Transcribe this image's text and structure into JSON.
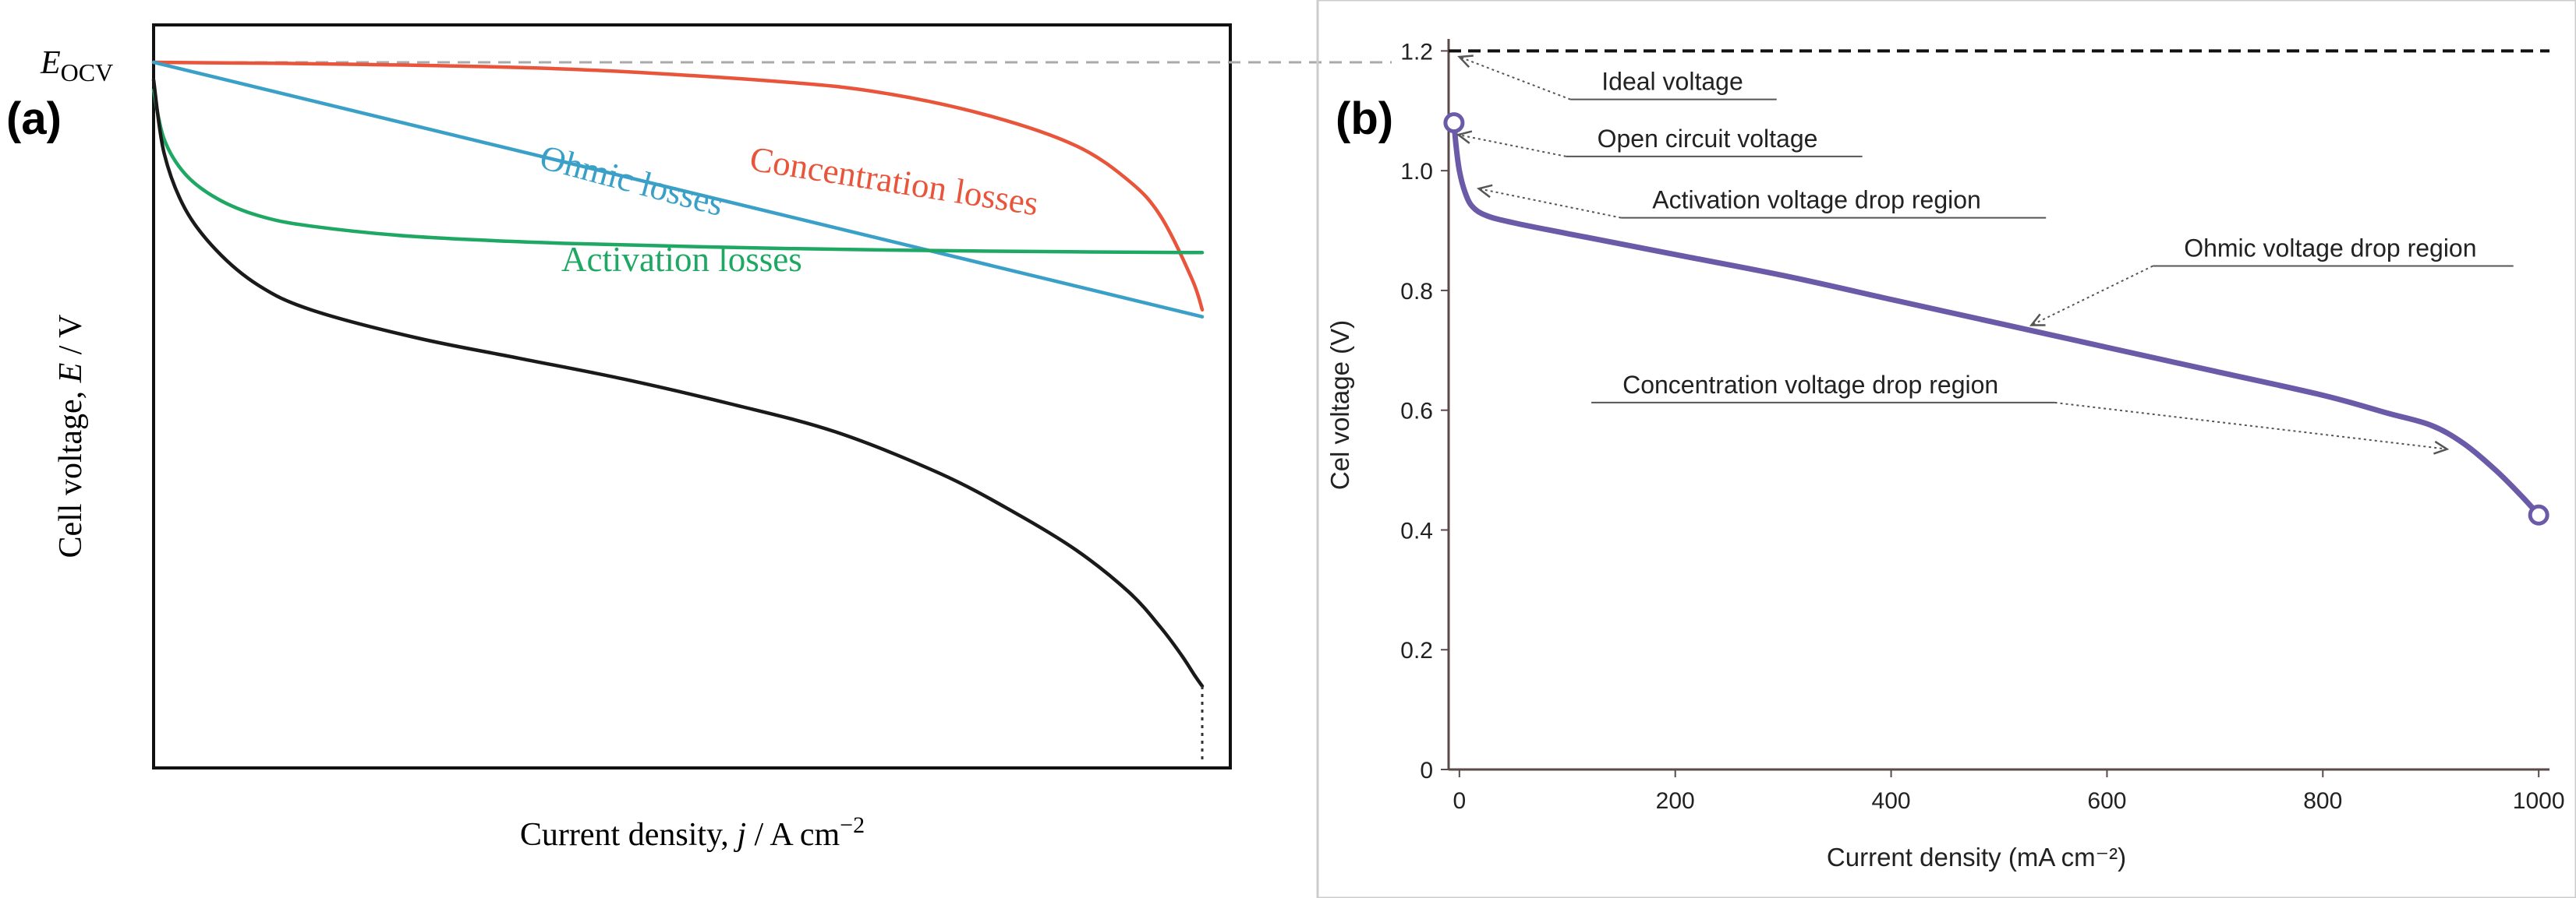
{
  "chart_data": [
    {
      "panel_label": "(a)",
      "type": "line",
      "xlabel_prefix": "Current density, ",
      "xlabel_var": "j",
      "xlabel_suffix": " / A cm",
      "xlabel_exp": "−2",
      "ylabel_prefix": "Cell voltage, ",
      "ylabel_var": "E",
      "ylabel_suffix": " / V",
      "ocv_main": "E",
      "ocv_sub": "OCV",
      "x_domain": [
        0,
        1
      ],
      "y_domain": [
        0,
        1.1
      ],
      "ocv": 1.0,
      "series": [
        {
          "name": "Concentration losses",
          "color": "#e8553a",
          "points": [
            [
              0,
              1.0
            ],
            [
              0.2,
              0.997
            ],
            [
              0.4,
              0.99
            ],
            [
              0.6,
              0.972
            ],
            [
              0.7,
              0.955
            ],
            [
              0.8,
              0.922
            ],
            [
              0.88,
              0.88
            ],
            [
              0.93,
              0.83
            ],
            [
              0.96,
              0.78
            ],
            [
              0.99,
              0.69
            ],
            [
              1.0,
              0.645
            ]
          ]
        },
        {
          "name": "Ohmic losses",
          "color": "#3aa0c8",
          "points": [
            [
              0,
              1.0
            ],
            [
              1.0,
              0.635
            ]
          ]
        },
        {
          "name": "Activation losses",
          "color": "#1fa864",
          "points": [
            [
              0,
              0.96
            ],
            [
              0.01,
              0.89
            ],
            [
              0.03,
              0.84
            ],
            [
              0.06,
              0.805
            ],
            [
              0.1,
              0.78
            ],
            [
              0.15,
              0.765
            ],
            [
              0.25,
              0.75
            ],
            [
              0.4,
              0.74
            ],
            [
              0.6,
              0.733
            ],
            [
              0.8,
              0.729
            ],
            [
              1.0,
              0.727
            ]
          ]
        },
        {
          "name": "Cell voltage",
          "color": "#1a1a1a",
          "points": [
            [
              0,
              0.975
            ],
            [
              0.01,
              0.87
            ],
            [
              0.03,
              0.79
            ],
            [
              0.06,
              0.73
            ],
            [
              0.1,
              0.68
            ],
            [
              0.15,
              0.645
            ],
            [
              0.25,
              0.605
            ],
            [
              0.35,
              0.575
            ],
            [
              0.45,
              0.545
            ],
            [
              0.55,
              0.51
            ],
            [
              0.65,
              0.47
            ],
            [
              0.75,
              0.41
            ],
            [
              0.82,
              0.355
            ],
            [
              0.88,
              0.3
            ],
            [
              0.93,
              0.24
            ],
            [
              0.96,
              0.19
            ],
            [
              0.98,
              0.15
            ],
            [
              0.993,
              0.12
            ],
            [
              1.0,
              0.105
            ]
          ]
        }
      ],
      "cutoff": {
        "x": 1.0,
        "from": 0.105,
        "to": 0
      }
    },
    {
      "panel_label": "(b)",
      "type": "line",
      "xlabel": "Current density (mA cm⁻²)",
      "ylabel": "Cel voltage (V)",
      "x_domain": [
        -10,
        1010
      ],
      "y_domain": [
        0,
        1.22
      ],
      "xticks": [
        0,
        200,
        400,
        600,
        800,
        1000
      ],
      "yticks": [
        0,
        0.2,
        0.4,
        0.6,
        0.8,
        1.0,
        1.2
      ],
      "xtick_labels": [
        "0",
        "200",
        "400",
        "600",
        "800",
        "1000"
      ],
      "ytick_labels": [
        "0",
        "0.2",
        "0.4",
        "0.6",
        "0.8",
        "1.0",
        "1.2"
      ],
      "ideal_voltage": 1.2,
      "series_color": "#6a5aa8",
      "points": [
        [
          -5,
          1.08
        ],
        [
          -3,
          1.04
        ],
        [
          0,
          1.0
        ],
        [
          5,
          0.965
        ],
        [
          12,
          0.94
        ],
        [
          25,
          0.925
        ],
        [
          50,
          0.913
        ],
        [
          100,
          0.895
        ],
        [
          200,
          0.86
        ],
        [
          300,
          0.825
        ],
        [
          400,
          0.785
        ],
        [
          500,
          0.745
        ],
        [
          600,
          0.705
        ],
        [
          700,
          0.665
        ],
        [
          800,
          0.625
        ],
        [
          860,
          0.595
        ],
        [
          900,
          0.575
        ],
        [
          930,
          0.545
        ],
        [
          960,
          0.5
        ],
        [
          985,
          0.455
        ],
        [
          1000,
          0.425
        ]
      ],
      "markers": [
        [
          -5,
          1.08
        ],
        [
          1000,
          0.425
        ]
      ],
      "annotations": [
        {
          "text": "Ideal voltage",
          "target": [
            0,
            1.19
          ],
          "x": 0.165,
          "y": 0.87
        },
        {
          "text": "Open circuit voltage",
          "target": [
            -1,
            1.06
          ],
          "x": 0.137,
          "y": 0.55
        },
        {
          "text": "Activation voltage drop region",
          "target": [
            18,
            0.97
          ],
          "x": 0.196,
          "y": 0.37
        },
        {
          "text": "Ohmic voltage drop region",
          "target": [
            530,
            0.742
          ],
          "x": 0.72,
          "y": 0.37
        },
        {
          "text": "Concentration voltage drop region",
          "target": [
            915,
            0.535
          ],
          "x": 0.365,
          "y": 0.3
        }
      ]
    }
  ]
}
